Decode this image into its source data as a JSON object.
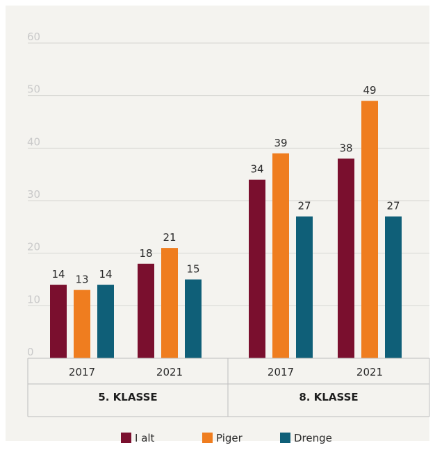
{
  "chart_data": {
    "type": "bar",
    "title": "",
    "xlabel": "",
    "ylabel": "",
    "ylim": [
      0,
      60
    ],
    "yticks": [
      0,
      10,
      20,
      30,
      40,
      50,
      60
    ],
    "grid": true,
    "legend_position": "bottom",
    "groups": [
      {
        "label": "5. KLASSE",
        "years": [
          "2017",
          "2021"
        ]
      },
      {
        "label": "8. KLASSE",
        "years": [
          "2017",
          "2021"
        ]
      }
    ],
    "categories": [
      "2017",
      "2021",
      "2017",
      "2021"
    ],
    "series": [
      {
        "name": "I alt",
        "color": "#7a0f2e",
        "values": [
          14,
          18,
          34,
          38
        ]
      },
      {
        "name": "Piger",
        "color": "#ef7d1f",
        "values": [
          13,
          21,
          39,
          49
        ]
      },
      {
        "name": "Drenge",
        "color": "#0f5f78",
        "values": [
          14,
          15,
          27,
          27
        ]
      }
    ]
  }
}
